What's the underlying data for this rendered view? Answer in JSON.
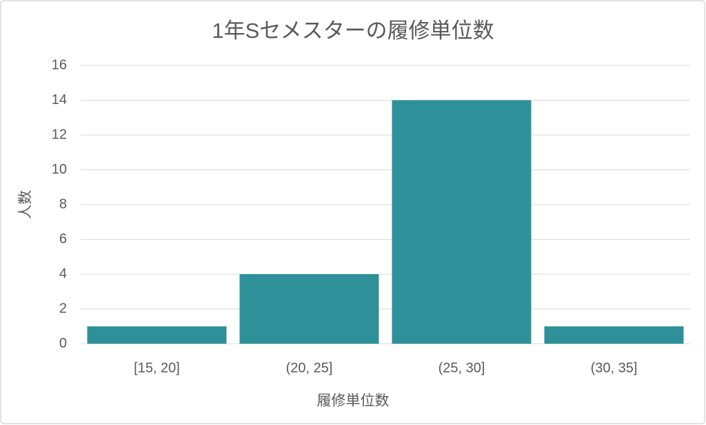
{
  "chart_data": {
    "type": "bar",
    "title": "1年Sセメスターの履修単位数",
    "x_label": "履修単位数",
    "y_label": "人数",
    "categories": [
      "[15, 20]",
      "(20, 25]",
      "(25, 30]",
      "(30, 35]"
    ],
    "values": [
      1,
      4,
      14,
      1
    ],
    "color": "#2e9199",
    "ylim": [
      0,
      16
    ],
    "yticks": [
      0,
      2,
      4,
      6,
      8,
      10,
      12,
      14,
      16
    ],
    "grid": true
  }
}
